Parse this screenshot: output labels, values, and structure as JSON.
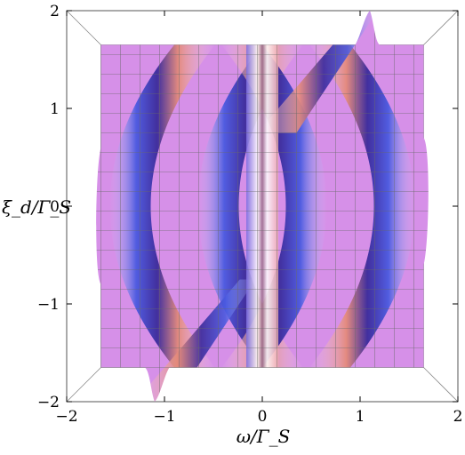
{
  "chart_data": {
    "type": "heatmap",
    "title": "",
    "xlabel": "ω/Γ_S",
    "ylabel": "ξ_d/Γ_S",
    "xlim": [
      -2,
      2
    ],
    "ylim": [
      -2,
      2
    ],
    "x_ticks": [
      "−2",
      "−1",
      "0",
      "1",
      "2"
    ],
    "y_ticks": [
      "−2",
      "−1",
      "0",
      "1",
      "2"
    ],
    "x_tick_values": [
      -2,
      -1,
      0,
      1,
      2
    ],
    "y_tick_values": [
      -2,
      -1,
      0,
      1,
      2
    ],
    "grid": true,
    "grid_step": 0.2,
    "surface_extent": {
      "x": [
        -1.65,
        1.65
      ],
      "y": [
        -1.65,
        1.65
      ]
    },
    "bands": [
      {
        "name": "left-arc",
        "apex": [
          -1.35,
          0.0
        ],
        "curvature": 0.11,
        "side": "left"
      },
      {
        "name": "center-left-arc",
        "apex": [
          -0.45,
          0.0
        ],
        "curvature": 0.11,
        "side": "left"
      },
      {
        "name": "center-right-arc",
        "apex": [
          0.45,
          0.0
        ],
        "curvature": 0.11,
        "side": "right"
      },
      {
        "name": "right-arc",
        "apex": [
          1.35,
          0.0
        ],
        "curvature": 0.11,
        "side": "right"
      },
      {
        "name": "upper-diagonal",
        "from": [
          0.15,
          0.75
        ],
        "to": [
          1.1,
          2.0
        ]
      },
      {
        "name": "lower-diagonal",
        "from": [
          -1.1,
          -2.0
        ],
        "to": [
          -0.15,
          -0.75
        ]
      },
      {
        "name": "central-stripe",
        "x": 0.0,
        "from_y": -1.65,
        "to_y": 1.65
      }
    ],
    "colors": {
      "background": "#d690e8",
      "peak_positive": "#cc3a2e",
      "peak_negative": "#2020c0",
      "highlight": "#ffffff"
    }
  }
}
